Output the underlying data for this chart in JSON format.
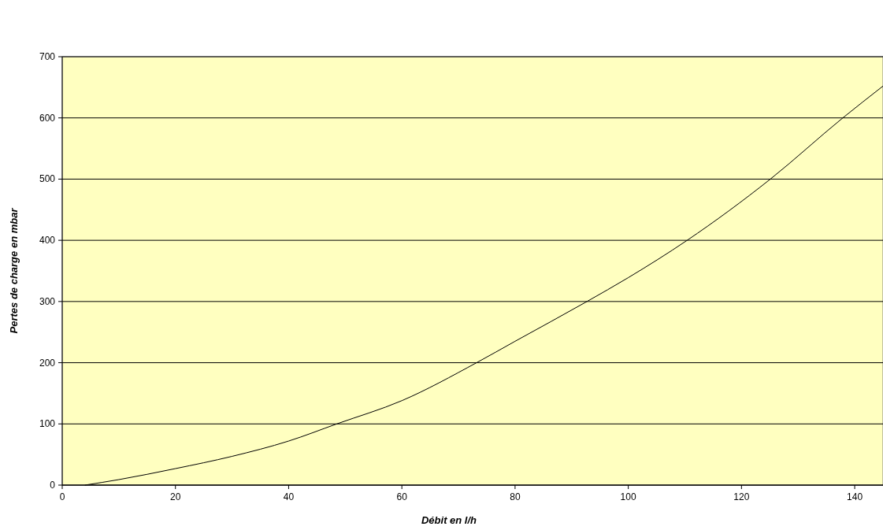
{
  "chart_data": {
    "type": "line",
    "xlabel": "Débit en l/h",
    "ylabel": "Pertes de charge en mbar",
    "x": [
      4,
      10,
      20,
      30,
      40,
      48.5,
      60,
      73.2,
      80,
      92.7,
      100,
      110.4,
      125.1,
      137.9,
      145
    ],
    "series": [
      {
        "color": "#000000",
        "values": [
          0,
          9,
          27,
          47,
          72,
          100,
          138,
          200,
          235,
          300,
          339,
          400,
          500,
          600,
          652
        ]
      }
    ],
    "xlim": [
      0,
      145
    ],
    "xticks": [
      0,
      20,
      40,
      60,
      80,
      100,
      120,
      140
    ],
    "ylim": [
      0,
      700
    ],
    "yticks": [
      0,
      100,
      200,
      300,
      400,
      500,
      600,
      700
    ],
    "grid": "y",
    "marker": "none",
    "line_style": "solid"
  }
}
